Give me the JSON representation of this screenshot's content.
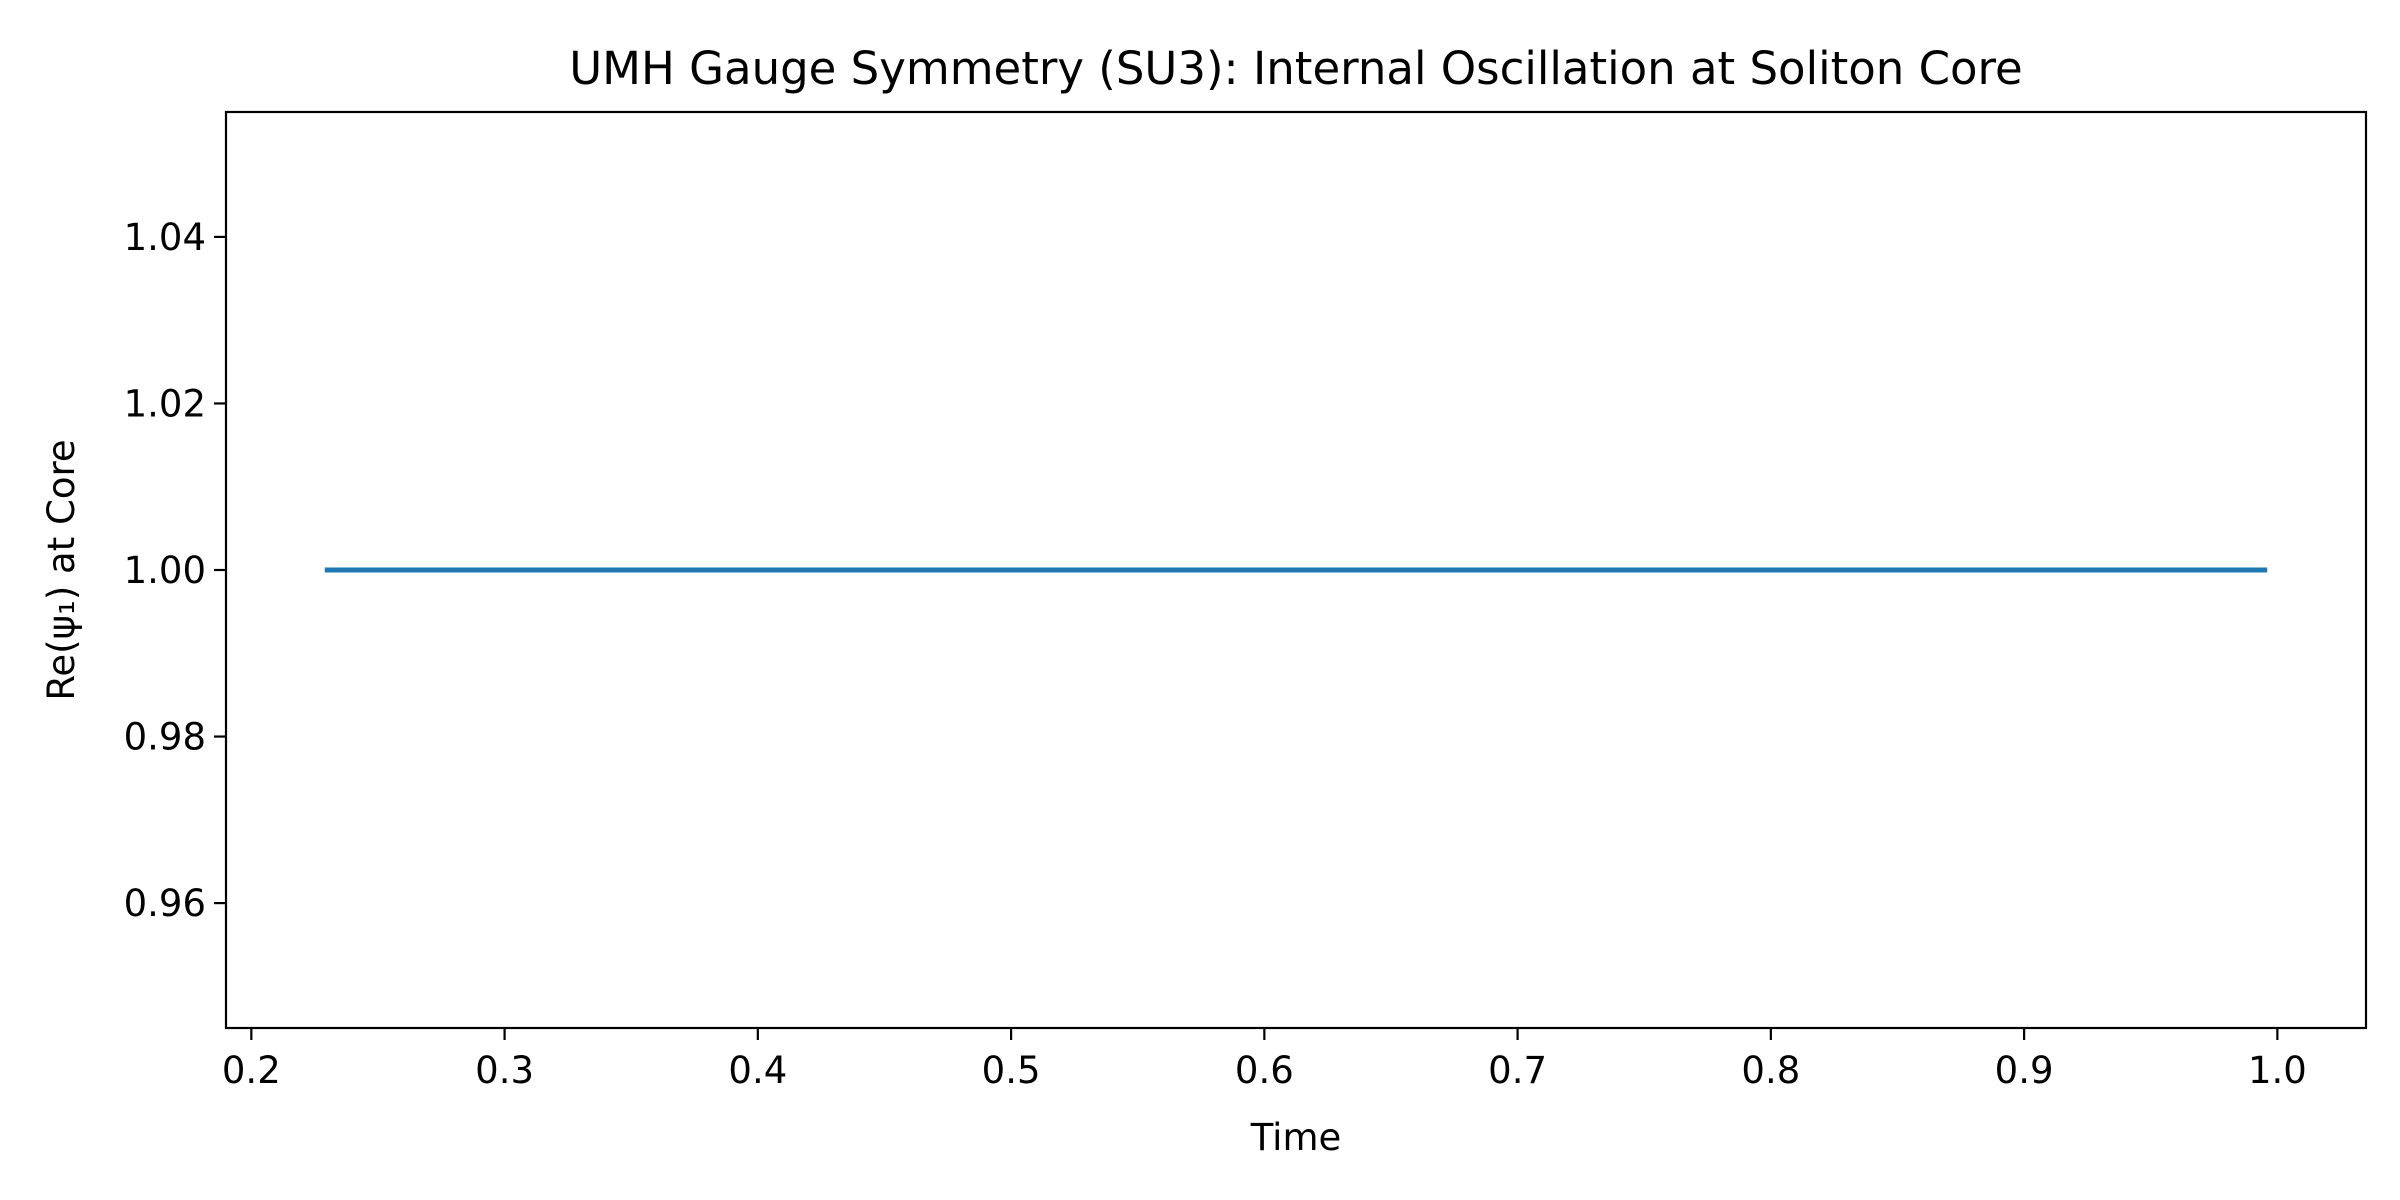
{
  "chart_data": {
    "type": "line",
    "title": "UMH Gauge Symmetry (SU3): Internal Oscillation at Soliton Core",
    "xlabel": "Time",
    "ylabel": "Re(ψ₁) at Core",
    "xlim": [
      0.19,
      1.035
    ],
    "ylim": [
      0.945,
      1.055
    ],
    "x_ticks": [
      0.2,
      0.3,
      0.4,
      0.5,
      0.6,
      0.7,
      0.8,
      0.9,
      1.0
    ],
    "x_tick_labels": [
      "0.2",
      "0.3",
      "0.4",
      "0.5",
      "0.6",
      "0.7",
      "0.8",
      "0.9",
      "1.0"
    ],
    "y_ticks": [
      0.96,
      0.98,
      1.0,
      1.02,
      1.04
    ],
    "y_tick_labels": [
      "0.96",
      "0.98",
      "1.00",
      "1.02",
      "1.04"
    ],
    "grid": false,
    "series": [
      {
        "color": "#1f77b4",
        "x": [
          0.23,
          0.995
        ],
        "y": [
          1.0,
          1.0
        ]
      }
    ]
  }
}
